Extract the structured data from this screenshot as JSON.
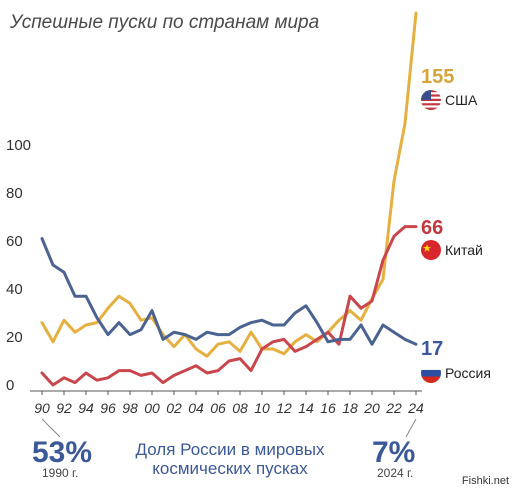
{
  "title": "Успешные пуски по странам мира",
  "chart_data": {
    "type": "line",
    "x": [
      1990,
      1991,
      1992,
      1993,
      1994,
      1995,
      1996,
      1997,
      1998,
      1999,
      2000,
      2001,
      2002,
      2003,
      2004,
      2005,
      2006,
      2007,
      2008,
      2009,
      2010,
      2011,
      2012,
      2013,
      2014,
      2015,
      2016,
      2017,
      2018,
      2019,
      2020,
      2021,
      2022,
      2023,
      2024
    ],
    "x_tick_labels": [
      "90",
      "92",
      "94",
      "96",
      "98",
      "00",
      "02",
      "04",
      "06",
      "08",
      "10",
      "12",
      "14",
      "16",
      "18",
      "20",
      "22",
      "24"
    ],
    "y_ticks": [
      0,
      20,
      40,
      60,
      80,
      100
    ],
    "ylim": [
      0,
      160
    ],
    "grid": false,
    "series": [
      {
        "name": "США",
        "color": "#e6b040",
        "values": [
          26,
          18,
          27,
          22,
          25,
          26,
          32,
          37,
          34,
          27,
          28,
          21,
          16,
          21,
          15,
          12,
          17,
          18,
          14,
          22,
          15,
          15,
          13,
          18,
          21,
          18,
          22,
          27,
          31,
          27,
          36,
          44,
          85,
          109,
          155
        ],
        "end_label": "155"
      },
      {
        "name": "Китай",
        "color": "#c9474c",
        "values": [
          5,
          0,
          3,
          1,
          5,
          2,
          3,
          6,
          6,
          4,
          5,
          1,
          4,
          6,
          8,
          5,
          6,
          10,
          11,
          6,
          15,
          18,
          19,
          14,
          16,
          19,
          22,
          17,
          37,
          32,
          35,
          52,
          62,
          66,
          66
        ],
        "end_label": "66"
      },
      {
        "name": "Россия",
        "color": "#4a6391",
        "values": [
          61,
          50,
          47,
          37,
          37,
          28,
          21,
          26,
          21,
          23,
          31,
          19,
          22,
          21,
          19,
          22,
          21,
          21,
          24,
          26,
          27,
          25,
          25,
          30,
          33,
          26,
          18,
          19,
          19,
          25,
          17,
          25,
          22,
          19,
          17
        ],
        "end_label": "17"
      }
    ]
  },
  "share": {
    "start_pct": "53%",
    "start_year": "1990 г.",
    "caption_line1": "Доля России в мировых",
    "caption_line2": "космических пусках",
    "end_pct": "7%",
    "end_year": "2024 г."
  },
  "watermark": "Fishki.net"
}
